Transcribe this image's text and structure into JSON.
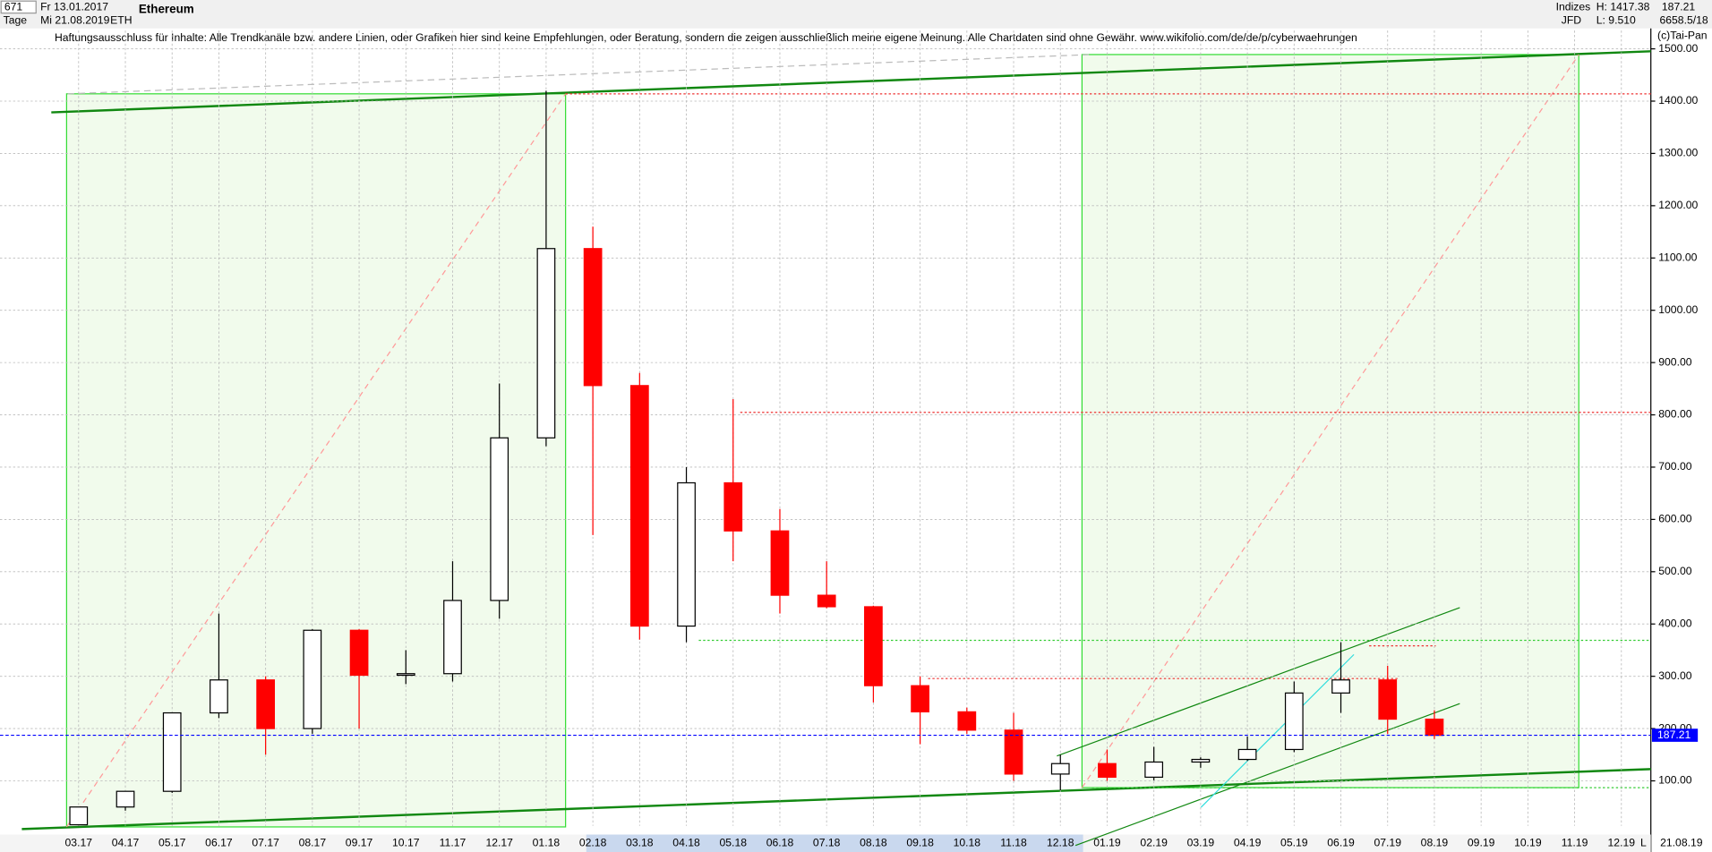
{
  "header": {
    "count": "671",
    "start_date": "Fr 13.01.2017",
    "period": "Tage",
    "end_date": "Mi 21.08.2019",
    "symbol": "ETH",
    "group": "Indizes",
    "exchange": "JFD",
    "high": "H: 1417.38",
    "low": "L: 9.510",
    "last": "187.21",
    "volume": "6658.5/18",
    "copyright": "(c)Tai-Pan",
    "disclaimer": "Haftungsausschluss für Inhalte: Alle Trendkanäle bzw. andere Linien, oder Grafiken hier sind keine Empfehlungen, oder Beratung, sondern die zeigen ausschließlich meine eigene Meinung. Alle Chartdaten sind ohne Gewähr.  www.wikifolio.com/de/de/p/cyberwaehrungen",
    "axis_end": "21.08.19",
    "axis_scale": "L"
  },
  "chart_data": {
    "type": "candlestick",
    "title": "Ethereum",
    "categories": [
      "03.17",
      "04.17",
      "05.17",
      "06.17",
      "07.17",
      "08.17",
      "09.17",
      "10.17",
      "11.17",
      "12.17",
      "01.18",
      "02.18",
      "03.18",
      "04.18",
      "05.18",
      "06.18",
      "07.18",
      "08.18",
      "09.18",
      "10.18",
      "11.18",
      "12.18",
      "01.19",
      "02.19",
      "03.19",
      "04.19",
      "05.19",
      "06.19",
      "07.19",
      "08.19",
      "09.19",
      "10.19",
      "11.19",
      "12.19"
    ],
    "open": [
      16,
      50,
      80,
      230,
      293,
      200,
      388,
      302,
      305,
      445,
      756,
      1118,
      856,
      396,
      670,
      578,
      455,
      433,
      282,
      232,
      197,
      113,
      133,
      107,
      136,
      141,
      160,
      268,
      293,
      218,
      null,
      null,
      null,
      null
    ],
    "high": [
      50,
      80,
      230,
      420,
      300,
      390,
      390,
      350,
      520,
      860,
      1420,
      1160,
      880,
      700,
      830,
      620,
      520,
      435,
      300,
      240,
      230,
      150,
      160,
      165,
      145,
      185,
      290,
      365,
      320,
      235,
      null,
      null,
      null,
      null
    ],
    "low": [
      15,
      43,
      77,
      220,
      150,
      190,
      200,
      285,
      290,
      410,
      740,
      570,
      370,
      365,
      520,
      420,
      430,
      250,
      170,
      190,
      100,
      82,
      100,
      101,
      125,
      138,
      155,
      230,
      190,
      180,
      null,
      null,
      null,
      null
    ],
    "close": [
      50,
      80,
      230,
      293,
      200,
      388,
      302,
      305,
      445,
      756,
      1118,
      856,
      396,
      670,
      578,
      455,
      433,
      282,
      232,
      197,
      113,
      133,
      107,
      136,
      141,
      160,
      268,
      293,
      218,
      187,
      null,
      null,
      null,
      null
    ],
    "up_color": "#000000",
    "down_color": "#ff0000",
    "ylim": [
      14,
      1535
    ],
    "yticks": [
      {
        "value": 100,
        "label": "100.00"
      },
      {
        "value": 200,
        "label": "200.00"
      },
      {
        "value": 300,
        "label": "300.00"
      },
      {
        "value": 400,
        "label": "400.00"
      },
      {
        "value": 500,
        "label": "500.00"
      },
      {
        "value": 600,
        "label": "600.00"
      },
      {
        "value": 700,
        "label": "700.00"
      },
      {
        "value": 800,
        "label": "800.00"
      },
      {
        "value": 900,
        "label": "900.00"
      },
      {
        "value": 1000,
        "label": "1000.00"
      },
      {
        "value": 1100,
        "label": "1100.00"
      },
      {
        "value": 1200,
        "label": "1200.00"
      },
      {
        "value": 1300,
        "label": "1300.00"
      },
      {
        "value": 1400,
        "label": "1400.00"
      },
      {
        "value": 1500,
        "label": "1500.00"
      }
    ],
    "last_price": 187.21,
    "last_price_color": "#0000ff",
    "grid": true
  }
}
